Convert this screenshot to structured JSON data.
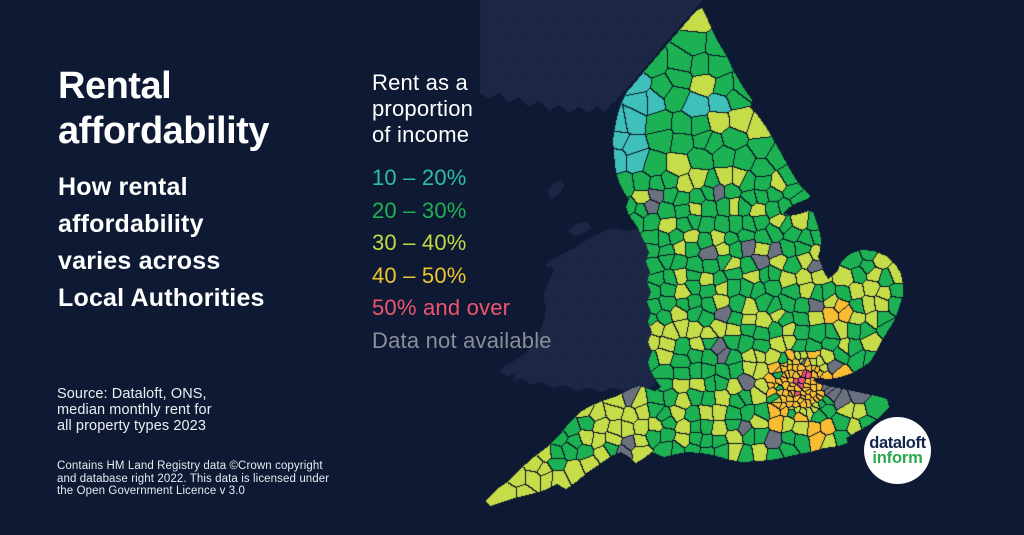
{
  "background_color": "#0e1a33",
  "title": {
    "heading": "Rental affordability",
    "subheading_lines": [
      "How rental",
      "affordability",
      "varies across",
      "Local Authorities"
    ]
  },
  "legend": {
    "heading_lines": [
      "Rent as a",
      "proportion",
      "of income"
    ],
    "items": [
      {
        "label": "10 – 20%",
        "key": "teal",
        "color": "#2ebcad"
      },
      {
        "label": "20 – 30%",
        "key": "green",
        "color": "#1fb254"
      },
      {
        "label": "30 – 40%",
        "key": "lime",
        "color": "#c3d944"
      },
      {
        "label": "40 – 50%",
        "key": "gold",
        "color": "#ecc52f"
      },
      {
        "label": "50% and over",
        "key": "pink",
        "color": "#f0546e"
      },
      {
        "label": "Data not available",
        "key": "gray",
        "color": "#8a8e99"
      }
    ]
  },
  "source_lines": [
    "Source: Dataloft, ONS,",
    "median monthly rent for",
    "all property types 2023"
  ],
  "license_lines": [
    "Contains HM Land Registry data ©Crown copyright",
    "and database right 2022. This data is licensed under",
    "the Open Government Licence v 3.0"
  ],
  "logo": {
    "line1": "dataloft",
    "line2": "inform",
    "line1_color": "#13244d",
    "line2_color": "#2ba84f"
  },
  "map": {
    "label": "Choropleth map of England local authorities coloured by rent as a proportion of income",
    "palette": {
      "teal": "#3fc0bb",
      "green": "#1cb152",
      "lime": "#c6dc49",
      "gold": "#f9bd32",
      "pink": "#ef5178",
      "gray": "#6b717e"
    },
    "silhouette_color": "#1b2744",
    "silhouette_dot_color": "#2c3a63",
    "border_color": "#0b1426"
  }
}
